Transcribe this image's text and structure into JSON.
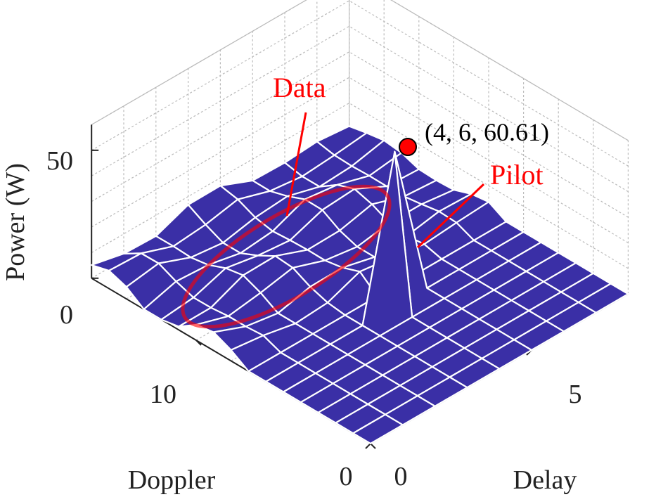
{
  "chart_data": {
    "type": "surface",
    "title": "",
    "xlabel": "Delay",
    "ylabel": "Doppler",
    "zlabel": "Power (W)",
    "xlim": [
      0,
      8
    ],
    "ylim": [
      0,
      16
    ],
    "zlim": [
      0,
      60
    ],
    "x_ticks": [
      {
        "value": 0,
        "label": "0"
      },
      {
        "value": 5,
        "label": "5"
      }
    ],
    "y_ticks": [
      {
        "value": 0,
        "label": "0"
      },
      {
        "value": 10,
        "label": "10"
      }
    ],
    "z_ticks": [
      {
        "value": 0,
        "label": "0"
      },
      {
        "value": 50,
        "label": "50"
      }
    ],
    "grid": true,
    "surface_color": "#3a2fa6",
    "mesh_line_color": "#ffffff",
    "annotation_color": "#ff0000",
    "peak": {
      "delay": 4,
      "doppler": 6,
      "power": 60.61,
      "label": "(4, 6, 60.61)"
    },
    "annotations": [
      {
        "id": "data",
        "text": "Data"
      },
      {
        "id": "pilot",
        "text": "Pilot"
      }
    ]
  }
}
